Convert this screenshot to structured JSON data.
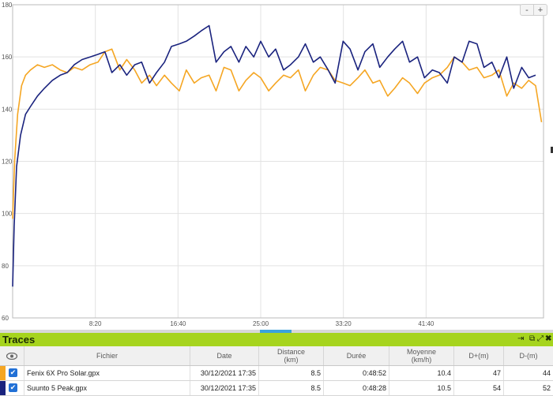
{
  "chart_data": {
    "type": "line",
    "xlabel": "",
    "ylabel": "",
    "xlim": [
      0,
      53.5
    ],
    "ylim": [
      60,
      180
    ],
    "x_ticks": [
      "8:20",
      "16:40",
      "25:00",
      "33:20",
      "41:40"
    ],
    "x_tick_values": [
      8.333,
      16.667,
      25.0,
      33.333,
      41.667
    ],
    "y_ticks": [
      60,
      80,
      100,
      120,
      140,
      160,
      180
    ],
    "grid": true,
    "series": [
      {
        "name": "Fenix 6X Pro Solar.gpx",
        "color": "#f5a623",
        "x": [
          0,
          0.2,
          0.5,
          0.9,
          1.3,
          1.8,
          2.5,
          3.2,
          4,
          4.8,
          5.5,
          6.2,
          7,
          7.8,
          8.6,
          9.3,
          10,
          10.8,
          11.5,
          12.3,
          13,
          13.8,
          14.5,
          15.3,
          16,
          16.8,
          17.5,
          18.3,
          19,
          19.8,
          20.5,
          21.3,
          22,
          22.8,
          23.5,
          24.3,
          25,
          25.8,
          26.5,
          27.3,
          28,
          28.8,
          29.5,
          30.3,
          31,
          31.8,
          32.5,
          33.3,
          34,
          34.8,
          35.5,
          36.3,
          37,
          37.8,
          38.5,
          39.3,
          40,
          40.8,
          41.5,
          42.3,
          43,
          43.8,
          44.5,
          45.3,
          46,
          46.8,
          47.5,
          48.3,
          49,
          49.8,
          50.5,
          51.3,
          52,
          52.7,
          53.3
        ],
        "y": [
          98,
          120,
          138,
          149,
          153,
          155,
          157,
          156,
          157,
          155,
          154,
          156,
          155,
          157,
          158,
          162,
          163,
          155,
          159,
          155,
          150,
          153,
          149,
          153,
          150,
          147,
          155,
          150,
          152,
          153,
          147,
          156,
          155,
          147,
          151,
          154,
          152,
          147,
          150,
          153,
          152,
          155,
          147,
          153,
          156,
          155,
          151,
          150,
          149,
          152,
          155,
          150,
          151,
          145,
          148,
          152,
          150,
          146,
          150,
          152,
          153,
          156,
          160,
          158,
          155,
          156,
          152,
          153,
          155,
          145,
          150,
          148,
          151,
          149,
          135
        ]
      },
      {
        "name": "Suunto 5 Peak.gpx",
        "color": "#1a237e",
        "x": [
          0,
          0.15,
          0.4,
          0.8,
          1.3,
          1.8,
          2.5,
          3.2,
          4,
          4.8,
          5.5,
          6.2,
          7,
          7.8,
          8.6,
          9.3,
          10,
          10.8,
          11.5,
          12.3,
          13,
          13.8,
          14.5,
          15.3,
          16,
          16.8,
          17.5,
          18.3,
          19,
          19.8,
          20.5,
          21.3,
          22,
          22.8,
          23.5,
          24.3,
          25,
          25.8,
          26.5,
          27.3,
          28,
          28.8,
          29.5,
          30.3,
          31,
          31.8,
          32.5,
          33.3,
          34,
          34.8,
          35.5,
          36.3,
          37,
          37.8,
          38.5,
          39.3,
          40,
          40.8,
          41.5,
          42.3,
          43,
          43.8,
          44.5,
          45.3,
          46,
          46.8,
          47.5,
          48.3,
          49,
          49.8,
          50.5,
          51.3,
          52,
          52.7
        ],
        "y": [
          72,
          95,
          118,
          130,
          138,
          141,
          145,
          148,
          151,
          153,
          154,
          157,
          159,
          160,
          161,
          162,
          154,
          157,
          153,
          157,
          158,
          150,
          154,
          158,
          164,
          165,
          166,
          168,
          170,
          172,
          158,
          162,
          164,
          158,
          164,
          160,
          166,
          160,
          163,
          155,
          157,
          160,
          165,
          158,
          160,
          155,
          150,
          166,
          163,
          155,
          162,
          165,
          156,
          160,
          163,
          166,
          158,
          160,
          152,
          155,
          154,
          150,
          160,
          158,
          166,
          165,
          156,
          158,
          152,
          160,
          148,
          156,
          152,
          153
        ]
      }
    ]
  },
  "chart_ui": {
    "zoom_out_label": "-",
    "zoom_in_label": "+"
  },
  "traces": {
    "title": "Traces",
    "columns": {
      "visible_icon": "eye-icon",
      "file": "Fichier",
      "date": "Date",
      "distance": "Distance",
      "distance_unit": "(km)",
      "duration": "Durée",
      "average": "Moyenne",
      "average_unit": "(km/h)",
      "d_plus": "D+(m)",
      "d_minus": "D-(m)"
    },
    "rows": [
      {
        "color": "#f5a623",
        "checked": true,
        "file": "Fenix 6X Pro Solar.gpx",
        "date": "30/12/2021 17:35",
        "distance": "8.5",
        "duration": "0:48:52",
        "average": "10.4",
        "d_plus": "47",
        "d_minus": "44"
      },
      {
        "color": "#1a237e",
        "checked": true,
        "file": "Suunto 5 Peak.gpx",
        "date": "30/12/2021 17:35",
        "distance": "8.5",
        "duration": "0:48:28",
        "average": "10.5",
        "d_plus": "54",
        "d_minus": "52"
      }
    ]
  }
}
